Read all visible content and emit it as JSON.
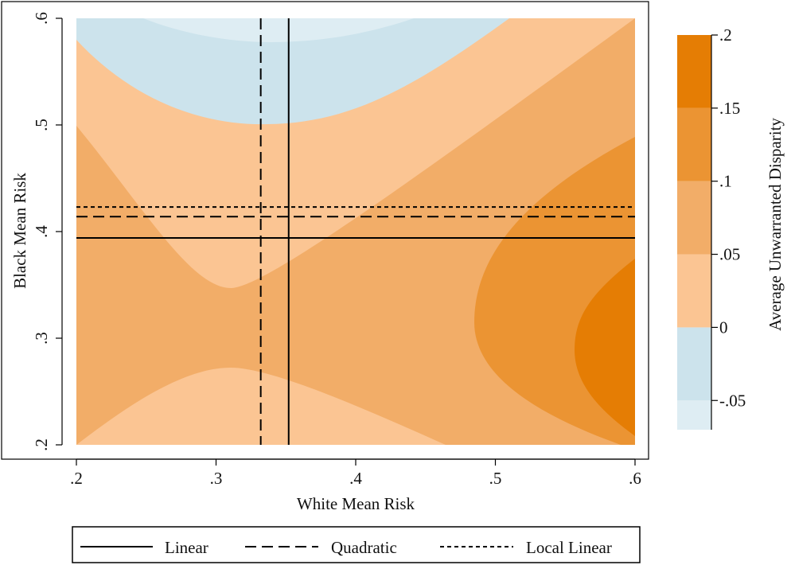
{
  "chart_data": {
    "type": "heatmap",
    "title": "",
    "xlabel": "White Mean Risk",
    "ylabel": "Black Mean Risk",
    "xlim": [
      0.2,
      0.6
    ],
    "ylim": [
      0.2,
      0.6
    ],
    "x_ticks": [
      {
        "value": 0.2,
        "label": ".2"
      },
      {
        "value": 0.3,
        "label": ".3"
      },
      {
        "value": 0.4,
        "label": ".4"
      },
      {
        "value": 0.5,
        "label": ".5"
      },
      {
        "value": 0.6,
        "label": ".6"
      }
    ],
    "y_ticks": [
      {
        "value": 0.2,
        "label": ".2"
      },
      {
        "value": 0.3,
        "label": ".3"
      },
      {
        "value": 0.4,
        "label": ".4"
      },
      {
        "value": 0.5,
        "label": ".5"
      },
      {
        "value": 0.6,
        "label": ".6"
      }
    ],
    "contour_levels": [
      {
        "range": [
          -0.07,
          -0.05
        ],
        "color": "#deedf3"
      },
      {
        "range": [
          -0.05,
          0
        ],
        "color": "#cce3ec"
      },
      {
        "range": [
          0,
          0.05
        ],
        "color": "#fbc593"
      },
      {
        "range": [
          0.05,
          0.1
        ],
        "color": "#f2ad68"
      },
      {
        "range": [
          0.1,
          0.15
        ],
        "color": "#eb9433"
      },
      {
        "range": [
          0.15,
          0.2
        ],
        "color": "#e57d04"
      }
    ],
    "colorbar": {
      "label": "Average Unwarranted Disparity",
      "ticks": [
        {
          "value": 0.2,
          "label": ".2"
        },
        {
          "value": 0.15,
          "label": ".15"
        },
        {
          "value": 0.1,
          "label": ".1"
        },
        {
          "value": 0.05,
          "label": ".05"
        },
        {
          "value": 0,
          "label": "0"
        },
        {
          "value": -0.05,
          "label": "-.05"
        }
      ]
    },
    "reference_lines": [
      {
        "name": "Linear",
        "style": "solid",
        "x": 0.352,
        "y": 0.394
      },
      {
        "name": "Quadratic",
        "style": "long-dash",
        "x": 0.332,
        "y": 0.414
      },
      {
        "name": "Local Linear",
        "style": "short-dash",
        "y": 0.423
      }
    ],
    "legend": {
      "position": "bottom",
      "entries": [
        "Linear",
        "Quadratic",
        "Local Linear"
      ]
    }
  }
}
